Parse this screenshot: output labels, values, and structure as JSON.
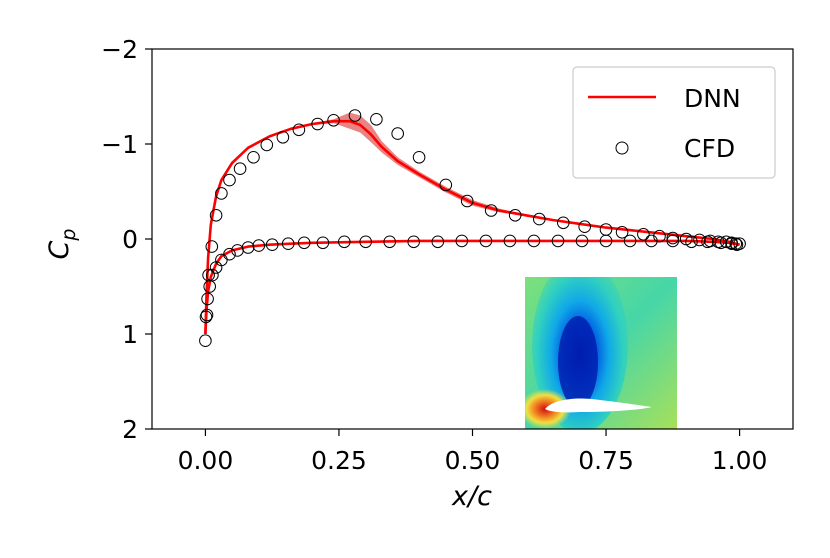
{
  "chart_data": {
    "type": "line",
    "xlabel": "x/c",
    "ylabel_base": "C",
    "ylabel_sub": "p",
    "xlim": [
      -0.1,
      1.1
    ],
    "ylim": [
      2,
      -2
    ],
    "y_inverted": true,
    "xticks": [
      0.0,
      0.25,
      0.5,
      0.75,
      1.0
    ],
    "xtick_labels": [
      "0.00",
      "0.25",
      "0.50",
      "0.75",
      "1.00"
    ],
    "yticks": [
      -2,
      -1,
      0,
      1,
      2
    ],
    "ytick_labels": [
      "−2",
      "−1",
      "0",
      "1",
      "2"
    ],
    "legend": {
      "position": "top-right",
      "entries": [
        {
          "label": "DNN",
          "marker": "line",
          "color": "#ff0000"
        },
        {
          "label": "CFD",
          "marker": "open-circle",
          "color": "#000000"
        }
      ]
    },
    "inset": {
      "description": "pressure-contour-field-around-airfoil",
      "position": "bottom-right"
    },
    "series": [
      {
        "name": "DNN",
        "kind": "line",
        "color": "#ff0000",
        "band_color": "#e05050",
        "upper_surface": {
          "x": [
            0.0,
            0.002,
            0.005,
            0.01,
            0.02,
            0.03,
            0.05,
            0.08,
            0.12,
            0.16,
            0.2,
            0.24,
            0.27,
            0.29,
            0.31,
            0.33,
            0.36,
            0.4,
            0.45,
            0.5,
            0.55,
            0.6,
            0.65,
            0.7,
            0.75,
            0.8,
            0.85,
            0.9,
            0.95,
            0.98,
            1.0
          ],
          "y": [
            1.0,
            0.6,
            0.2,
            -0.15,
            -0.45,
            -0.62,
            -0.8,
            -0.96,
            -1.08,
            -1.16,
            -1.21,
            -1.24,
            -1.24,
            -1.2,
            -1.1,
            -0.97,
            -0.82,
            -0.68,
            -0.52,
            -0.38,
            -0.3,
            -0.25,
            -0.2,
            -0.16,
            -0.12,
            -0.09,
            -0.06,
            -0.03,
            -0.0,
            0.03,
            0.06
          ]
        },
        "upper_band_hi": [
          1.0,
          0.6,
          0.2,
          -0.15,
          -0.45,
          -0.62,
          -0.8,
          -0.96,
          -1.08,
          -1.16,
          -1.22,
          -1.26,
          -1.33,
          -1.3,
          -1.2,
          -1.03,
          -0.86,
          -0.71,
          -0.55,
          -0.41,
          -0.32,
          -0.26,
          -0.21,
          -0.17,
          -0.13,
          -0.09,
          -0.06,
          -0.03,
          -0.0,
          0.03,
          0.06
        ],
        "upper_band_lo": [
          1.0,
          0.6,
          0.2,
          -0.15,
          -0.45,
          -0.62,
          -0.8,
          -0.96,
          -1.08,
          -1.16,
          -1.2,
          -1.22,
          -1.16,
          -1.12,
          -1.02,
          -0.91,
          -0.78,
          -0.65,
          -0.49,
          -0.35,
          -0.28,
          -0.24,
          -0.19,
          -0.15,
          -0.11,
          -0.08,
          -0.05,
          -0.03,
          -0.0,
          0.03,
          0.06
        ],
        "lower_surface": {
          "x": [
            0.0,
            0.002,
            0.005,
            0.01,
            0.02,
            0.03,
            0.05,
            0.08,
            0.12,
            0.16,
            0.2,
            0.3,
            0.4,
            0.5,
            0.6,
            0.7,
            0.8,
            0.9,
            0.95,
            0.98,
            1.0
          ],
          "y": [
            1.0,
            0.75,
            0.55,
            0.4,
            0.26,
            0.18,
            0.12,
            0.08,
            0.06,
            0.05,
            0.04,
            0.03,
            0.02,
            0.02,
            0.02,
            0.02,
            0.02,
            0.02,
            0.03,
            0.04,
            0.06
          ]
        }
      },
      {
        "name": "CFD",
        "kind": "scatter",
        "color": "#000000",
        "x": [
          0.0,
          0.003,
          0.006,
          0.012,
          0.02,
          0.03,
          0.045,
          0.065,
          0.09,
          0.115,
          0.145,
          0.175,
          0.21,
          0.24,
          0.28,
          0.32,
          0.36,
          0.4,
          0.45,
          0.49,
          0.535,
          0.58,
          0.625,
          0.67,
          0.71,
          0.75,
          0.78,
          0.82,
          0.85,
          0.875,
          0.9,
          0.925,
          0.945,
          0.96,
          0.975,
          0.985,
          0.993,
          1.0,
          0.001,
          0.004,
          0.008,
          0.013,
          0.02,
          0.03,
          0.045,
          0.06,
          0.08,
          0.1,
          0.125,
          0.155,
          0.185,
          0.22,
          0.26,
          0.3,
          0.345,
          0.39,
          0.435,
          0.48,
          0.525,
          0.57,
          0.615,
          0.66,
          0.705,
          0.75,
          0.795,
          0.835,
          0.875,
          0.91,
          0.94,
          0.965,
          0.985,
          0.995
        ],
        "y": [
          1.07,
          0.8,
          0.38,
          0.08,
          -0.25,
          -0.48,
          -0.62,
          -0.74,
          -0.86,
          -0.99,
          -1.07,
          -1.15,
          -1.21,
          -1.25,
          -1.3,
          -1.26,
          -1.11,
          -0.86,
          -0.57,
          -0.4,
          -0.3,
          -0.25,
          -0.21,
          -0.17,
          -0.13,
          -0.1,
          -0.07,
          -0.05,
          -0.03,
          -0.01,
          0.0,
          0.01,
          0.02,
          0.03,
          0.03,
          0.04,
          0.05,
          0.05,
          0.82,
          0.63,
          0.5,
          0.38,
          0.3,
          0.22,
          0.16,
          0.12,
          0.09,
          0.07,
          0.06,
          0.05,
          0.04,
          0.04,
          0.03,
          0.03,
          0.03,
          0.03,
          0.03,
          0.02,
          0.02,
          0.02,
          0.02,
          0.02,
          0.02,
          0.02,
          0.02,
          0.02,
          0.02,
          0.03,
          0.03,
          0.04,
          0.05,
          0.06
        ]
      }
    ]
  }
}
